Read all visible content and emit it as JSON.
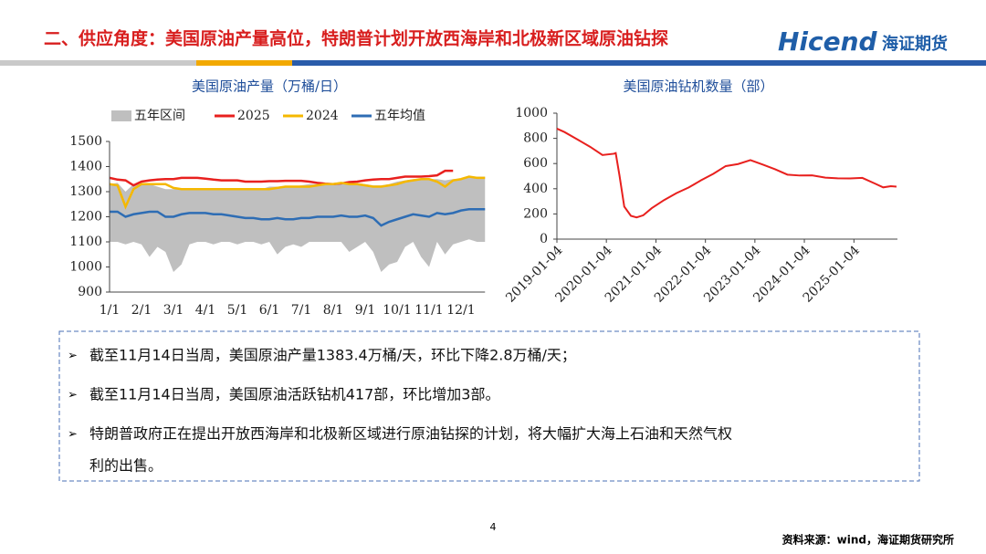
{
  "header": {
    "title": "二、供应角度：美国原油产量高位，特朗普计划开放西海岸和北极新区域原油钻探",
    "logo": "Hicend",
    "logo_cn": "海证期货"
  },
  "chart_data": [
    {
      "type": "line",
      "title": "美国原油产量（万桶/日）",
      "categories": [
        "1/1",
        null,
        null,
        null,
        "2/1",
        null,
        null,
        null,
        "3/1",
        null,
        null,
        null,
        "4/1",
        null,
        null,
        null,
        "5/1",
        null,
        null,
        null,
        "6/1",
        null,
        null,
        null,
        "7/1",
        null,
        null,
        null,
        "8/1",
        null,
        null,
        null,
        "9/1",
        null,
        null,
        null,
        "10/1",
        null,
        null,
        null,
        "11/1",
        null,
        null,
        null,
        "12/1",
        null,
        null,
        null
      ],
      "ylim": [
        900,
        1500
      ],
      "yticks": [
        900,
        1000,
        1100,
        1200,
        1300,
        1400,
        1500
      ],
      "series": [
        {
          "name": "五年区间",
          "color": "#bfbfbf",
          "values": [
            1330,
            1335,
            1300,
            1330,
            1330,
            1330,
            1320,
            1310,
            1310,
            1310,
            1310,
            1310,
            1310,
            1310,
            1310,
            1310,
            1310,
            1310,
            1310,
            1310,
            1320,
            1320,
            1320,
            1320,
            1325,
            1330,
            1330,
            1330,
            1335,
            1330,
            1330,
            1335,
            1330,
            1325,
            1325,
            1330,
            1340,
            1345,
            1350,
            1350,
            1350,
            1350,
            1345,
            1350,
            1350,
            1360,
            1360,
            1360
          ],
          "low": [
            1100,
            1100,
            1090,
            1100,
            1090,
            1040,
            1080,
            1060,
            980,
            1010,
            1090,
            1100,
            1100,
            1090,
            1100,
            1100,
            1090,
            1100,
            1100,
            1090,
            1100,
            1050,
            1080,
            1090,
            1080,
            1100,
            1100,
            1100,
            1100,
            1100,
            1060,
            1080,
            1100,
            1060,
            980,
            1010,
            1020,
            1080,
            1100,
            1040,
            1000,
            1100,
            1050,
            1090,
            1100,
            1110,
            1100,
            1100
          ]
        },
        {
          "name": "2025",
          "color": "#e8201e",
          "values": [
            1355,
            1348,
            1345,
            1325,
            1340,
            1345,
            1348,
            1350,
            1350,
            1355,
            1355,
            1355,
            1352,
            1348,
            1345,
            1345,
            1345,
            1340,
            1340,
            1340,
            1342,
            1342,
            1343,
            1343,
            1343,
            1340,
            1335,
            1332,
            1330,
            1333,
            1338,
            1340,
            1345,
            1348,
            1350,
            1350,
            1355,
            1360,
            1360,
            1360,
            1362,
            1365,
            1383,
            1383,
            null,
            null,
            null,
            null
          ]
        },
        {
          "name": "2024",
          "color": "#f5b800",
          "values": [
            1330,
            1325,
            1240,
            1310,
            1330,
            1330,
            1330,
            1330,
            1315,
            1310,
            1310,
            1310,
            1310,
            1310,
            1310,
            1310,
            1310,
            1310,
            1310,
            1310,
            1310,
            1315,
            1320,
            1320,
            1320,
            1320,
            1325,
            1330,
            1330,
            1335,
            1330,
            1330,
            1325,
            1320,
            1320,
            1325,
            1330,
            1340,
            1345,
            1350,
            1350,
            1340,
            1320,
            1345,
            1350,
            1360,
            1355,
            1355
          ]
        },
        {
          "name": "五年均值",
          "color": "#2e6db4",
          "values": [
            1220,
            1220,
            1200,
            1210,
            1215,
            1220,
            1220,
            1200,
            1200,
            1210,
            1215,
            1215,
            1215,
            1210,
            1210,
            1205,
            1200,
            1195,
            1195,
            1190,
            1190,
            1195,
            1190,
            1190,
            1195,
            1195,
            1200,
            1200,
            1200,
            1205,
            1200,
            1200,
            1205,
            1195,
            1165,
            1180,
            1190,
            1200,
            1210,
            1205,
            1200,
            1215,
            1210,
            1215,
            1225,
            1230,
            1230,
            1230
          ]
        }
      ]
    },
    {
      "type": "line",
      "title": "美国原油钻机数量（部）",
      "xlim": [
        "2019-01-04",
        "2025-11-21"
      ],
      "xticks": [
        "2019-01-04",
        "2020-01-04",
        "2021-01-04",
        "2022-01-04",
        "2023-01-04",
        "2024-01-04",
        "2025-01-04"
      ],
      "ylim": [
        0,
        1000
      ],
      "yticks": [
        0,
        200,
        400,
        600,
        800,
        1000
      ],
      "x": [
        "2019-01-04",
        "2019-03-01",
        "2019-06-07",
        "2019-09-06",
        "2019-12-06",
        "2020-02-28",
        "2020-03-13",
        "2020-04-10",
        "2020-05-15",
        "2020-07-03",
        "2020-08-14",
        "2020-10-02",
        "2020-12-04",
        "2021-03-05",
        "2021-06-04",
        "2021-09-03",
        "2021-12-03",
        "2022-03-04",
        "2022-06-03",
        "2022-09-02",
        "2022-12-02",
        "2023-03-03",
        "2023-06-02",
        "2023-09-01",
        "2023-12-01",
        "2024-03-01",
        "2024-06-07",
        "2024-09-06",
        "2024-12-06",
        "2025-03-07",
        "2025-06-06",
        "2025-08-08",
        "2025-10-03",
        "2025-11-14"
      ],
      "series": [
        {
          "name": "钻机数量",
          "color": "#e8201e",
          "values": [
            877,
            850,
            790,
            733,
            668,
            678,
            683,
            504,
            258,
            185,
            172,
            189,
            246,
            310,
            365,
            410,
            467,
            519,
            580,
            596,
            627,
            592,
            555,
            512,
            505,
            506,
            488,
            483,
            482,
            486,
            442,
            411,
            420,
            417
          ]
        }
      ]
    }
  ],
  "bullets": [
    "截至11月14日当周，美国原油产量1383.4万桶/天，环比下降2.8万桶/天；",
    "截至11月14日当周，美国原油活跃钻机417部，环比增加3部。",
    "特朗普政府正在提出开放西海岸和北极新区域进行原油钻探的计划，将大幅扩大海上石油和天然气权",
    "利的出售。"
  ],
  "footer": {
    "page": "4",
    "source": "资料来源：wind，海证期货研究所"
  }
}
